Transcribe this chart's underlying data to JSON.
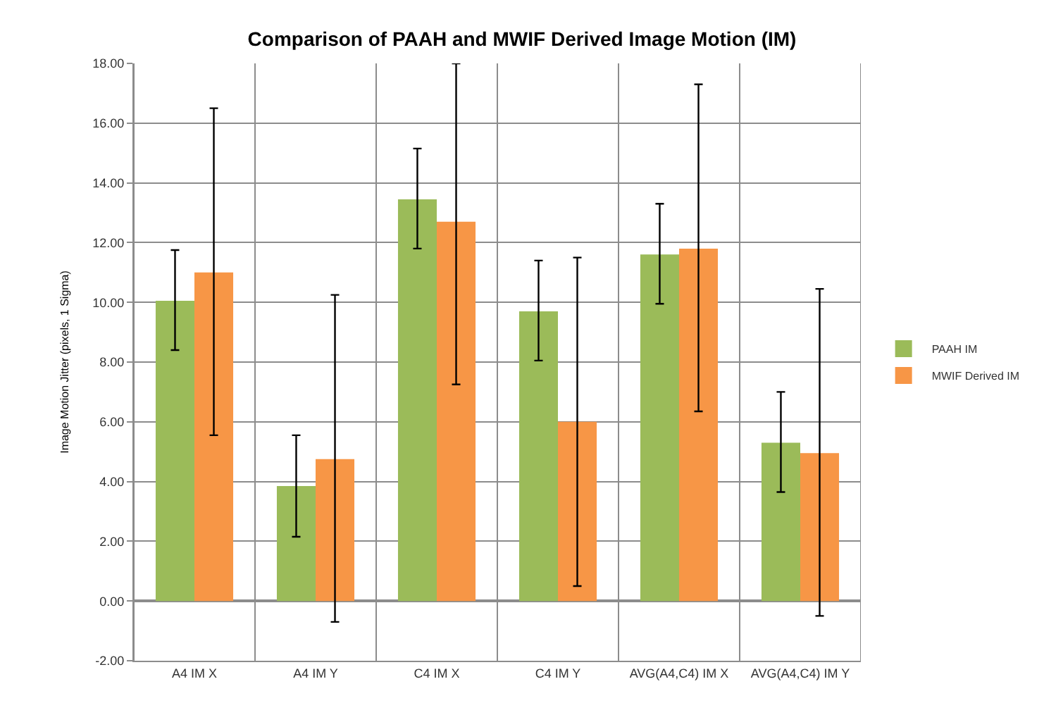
{
  "chart_data": {
    "type": "bar",
    "title": "Comparison of PAAH and MWIF Derived Image Motion (IM)",
    "ylabel": "Image Motion Jitter (pixels, 1 Sigma)",
    "categories": [
      "A4 IM X",
      "A4 IM Y",
      "C4 IM X",
      "C4 IM Y",
      "AVG(A4,C4) IM X",
      "AVG(A4,C4) IM Y"
    ],
    "series": [
      {
        "name": "PAAH IM",
        "color": "#9bbb59",
        "values": [
          10.05,
          3.85,
          13.45,
          9.7,
          11.6,
          5.3
        ],
        "errors": [
          [
            8.4,
            11.75
          ],
          [
            2.15,
            5.55
          ],
          [
            11.8,
            15.15
          ],
          [
            8.05,
            11.4
          ],
          [
            9.95,
            13.3
          ],
          [
            3.65,
            7.0
          ]
        ]
      },
      {
        "name": "MWIF Derived IM",
        "color": "#f79646",
        "values": [
          11.0,
          4.75,
          12.7,
          6.0,
          11.8,
          4.95
        ],
        "errors": [
          [
            5.55,
            16.5
          ],
          [
            -0.7,
            10.25
          ],
          [
            7.25,
            18.0
          ],
          [
            0.5,
            11.5
          ],
          [
            6.35,
            17.3
          ],
          [
            -0.5,
            10.45
          ]
        ]
      }
    ],
    "ylim": [
      -2,
      18
    ],
    "yticks": [
      {
        "value": -2,
        "label": "-2.00"
      },
      {
        "value": 0,
        "label": "0.00"
      },
      {
        "value": 2,
        "label": "2.00"
      },
      {
        "value": 4,
        "label": "4.00"
      },
      {
        "value": 6,
        "label": "6.00"
      },
      {
        "value": 8,
        "label": "8.00"
      },
      {
        "value": 10,
        "label": "10.00"
      },
      {
        "value": 12,
        "label": "12.00"
      },
      {
        "value": 14,
        "label": "14.00"
      },
      {
        "value": 16,
        "label": "16.00"
      },
      {
        "value": 18,
        "label": "18.00"
      }
    ],
    "grid": true,
    "legend": "right"
  }
}
